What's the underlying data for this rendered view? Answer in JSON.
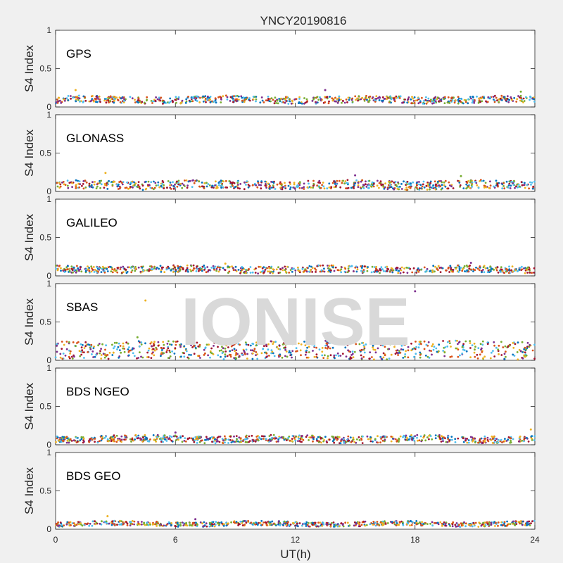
{
  "chart_data": {
    "type": "scatter",
    "title": "YNCY20190816",
    "xlabel": "UT(h)",
    "ylabel": "S4 Index",
    "xlim": [
      0,
      24
    ],
    "ylim": [
      0,
      1
    ],
    "x_ticks": [
      "0",
      "6",
      "12",
      "18",
      "24"
    ],
    "y_ticks": [
      "0",
      "0.5",
      "1"
    ],
    "watermark": "IONISE",
    "series_colors": [
      "#0072bd",
      "#d95319",
      "#edb120",
      "#7e2f8e",
      "#77ac30",
      "#4dbeee",
      "#a2142f"
    ],
    "panels": [
      {
        "label": "GPS",
        "band": [
          0.05,
          0.14
        ],
        "outliers": [
          [
            1.0,
            0.22
          ],
          [
            13.5,
            0.22
          ],
          [
            23.3,
            0.2
          ]
        ]
      },
      {
        "label": "GLONASS",
        "band": [
          0.03,
          0.14
        ],
        "outliers": [
          [
            2.5,
            0.24
          ],
          [
            15.0,
            0.21
          ],
          [
            20.3,
            0.2
          ]
        ]
      },
      {
        "label": "GALILEO",
        "band": [
          0.04,
          0.13
        ],
        "outliers": [
          [
            8.5,
            0.16
          ],
          [
            20.8,
            0.17
          ]
        ]
      },
      {
        "label": "SBAS",
        "band": [
          0.02,
          0.25
        ],
        "outliers": [
          [
            4.5,
            0.78
          ],
          [
            18.0,
            0.9
          ],
          [
            4.1,
            0.3
          ]
        ]
      },
      {
        "label": "BDS NGEO",
        "band": [
          0.03,
          0.12
        ],
        "outliers": [
          [
            23.8,
            0.2
          ],
          [
            6.0,
            0.16
          ]
        ]
      },
      {
        "label": "BDS GEO",
        "band": [
          0.04,
          0.1
        ],
        "outliers": [
          [
            2.6,
            0.17
          ],
          [
            7.0,
            0.13
          ]
        ]
      }
    ]
  }
}
